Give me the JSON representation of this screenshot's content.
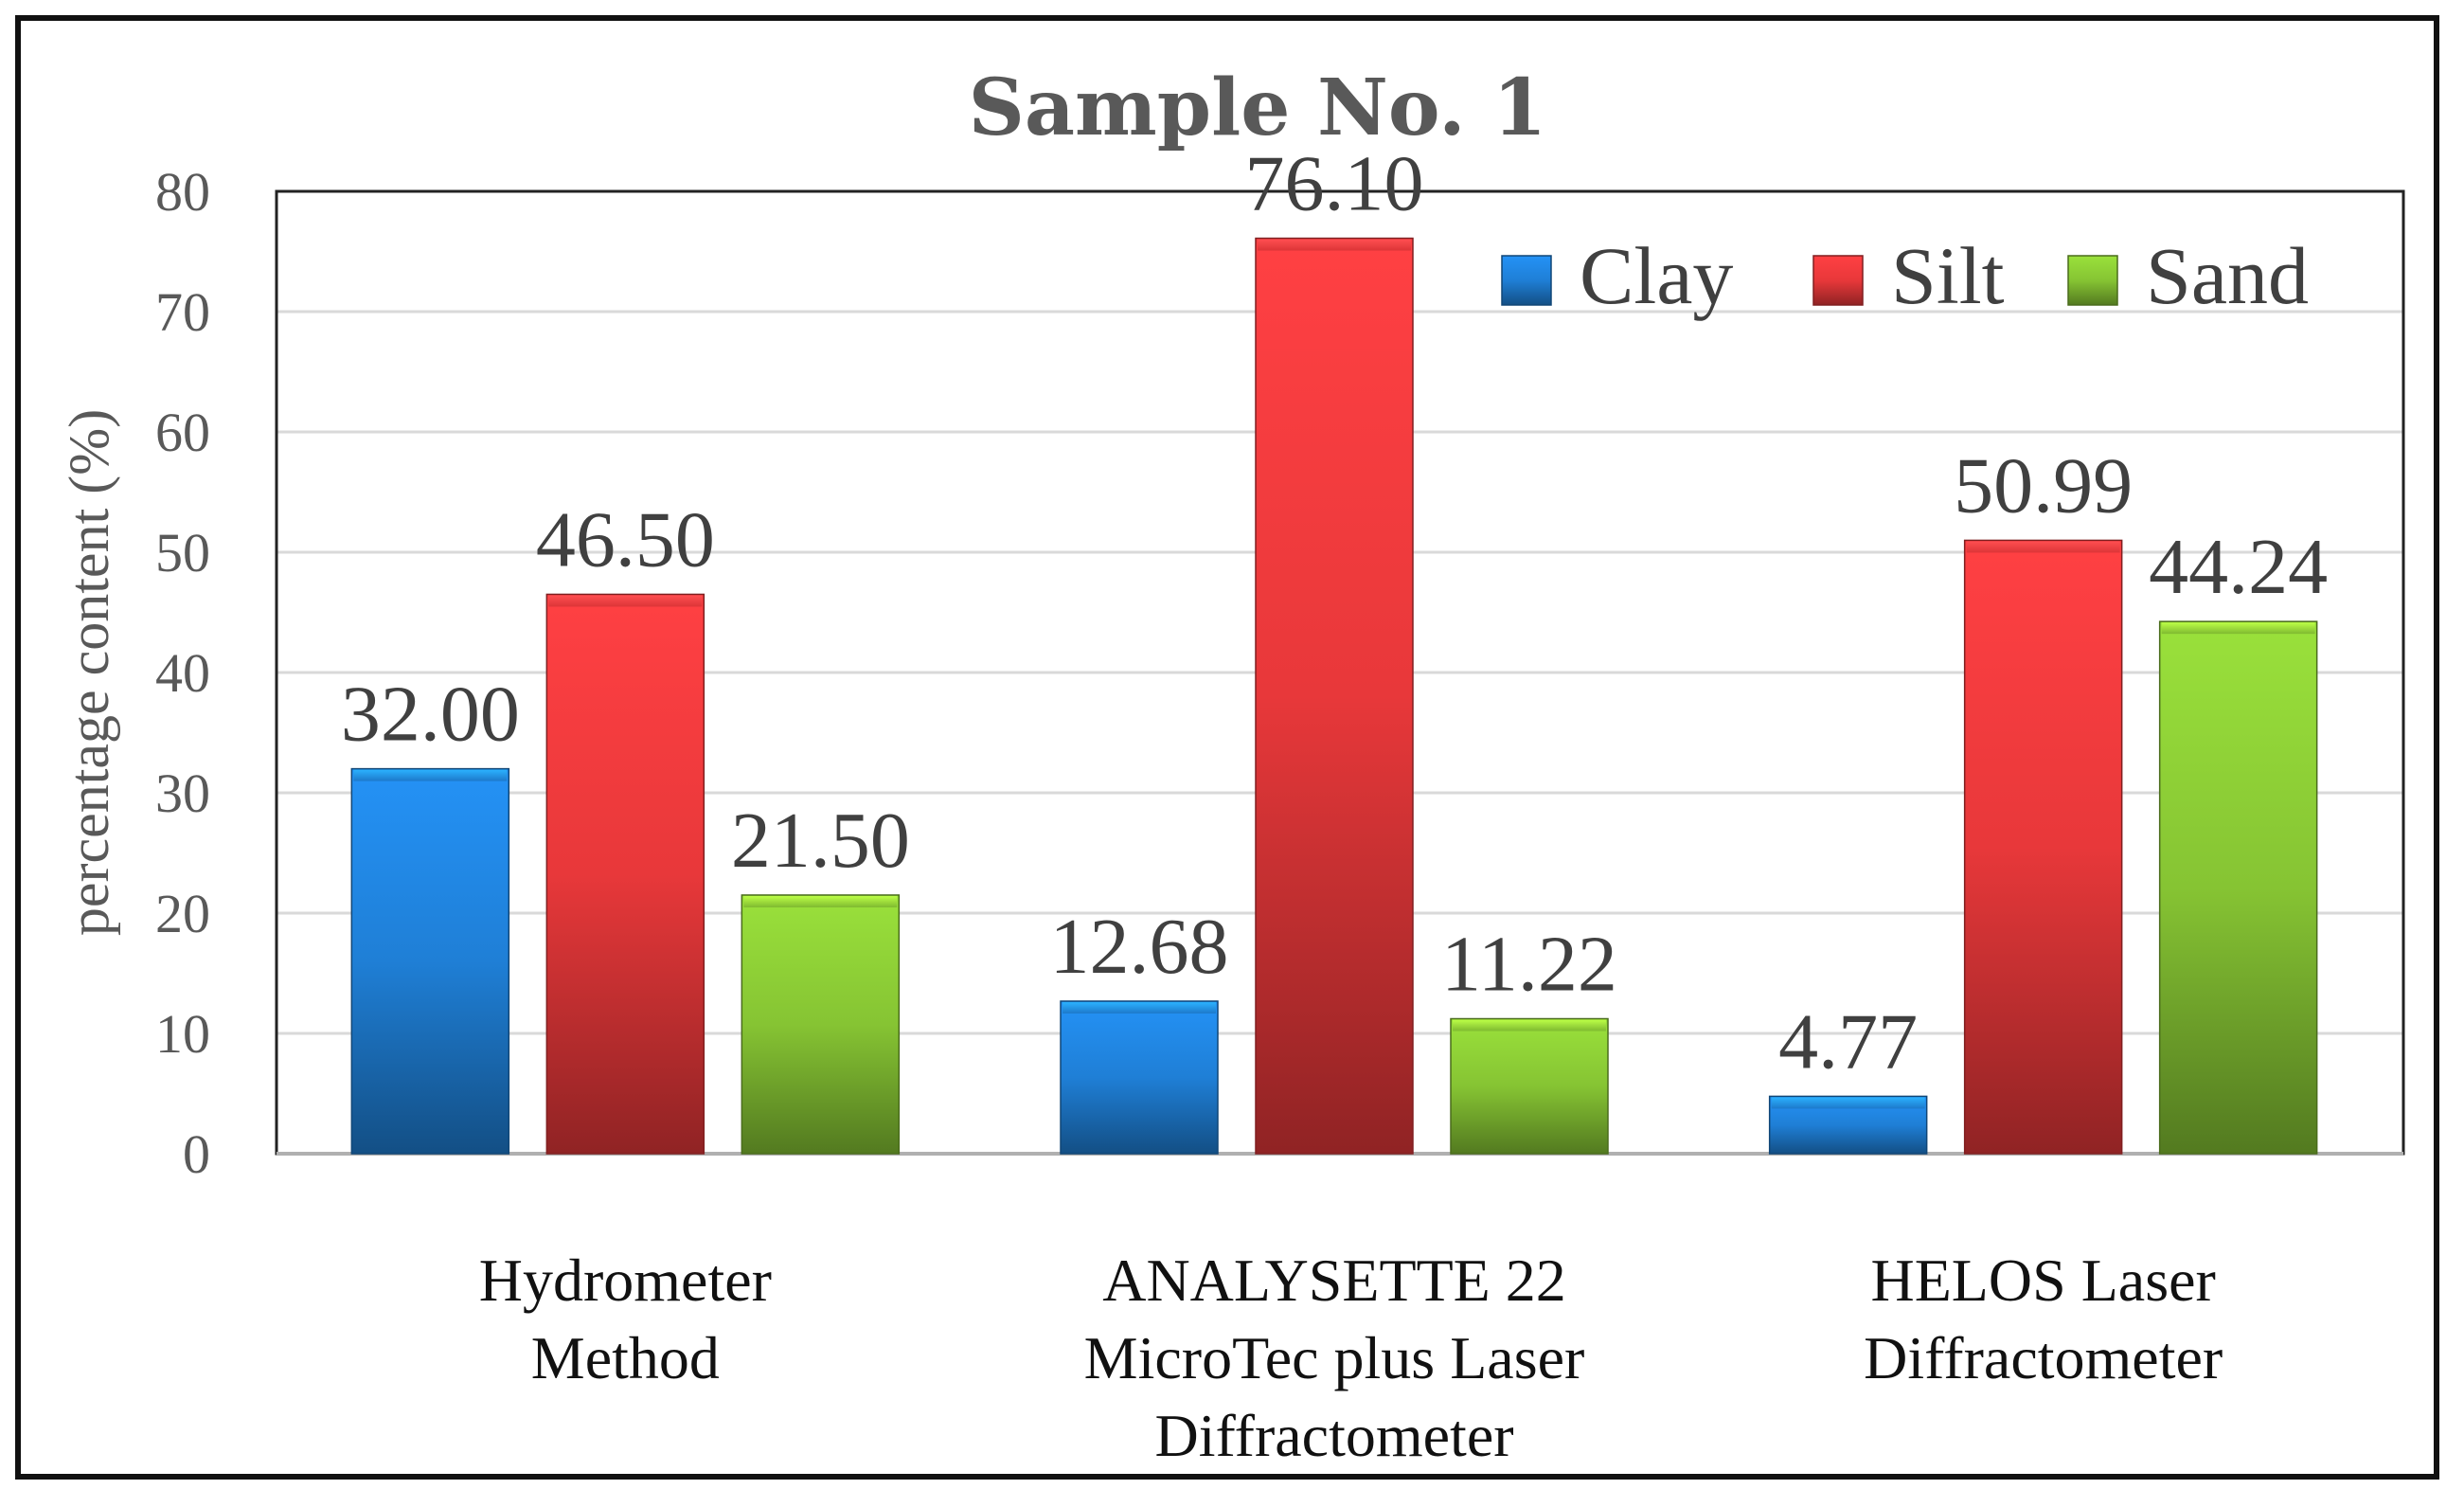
{
  "chart_data": {
    "type": "bar",
    "title": "Sample No. 1",
    "xlabel": "",
    "ylabel": "percentage content (%)",
    "ylim": [
      0,
      80
    ],
    "yticks": [
      0,
      10,
      20,
      30,
      40,
      50,
      60,
      70,
      80
    ],
    "grid": true,
    "legend_position": "top-right",
    "categories": [
      [
        "Hydrometer",
        "Method"
      ],
      [
        "ANALYSETTE 22",
        "MicroTec plus Laser",
        "Diffractometer"
      ],
      [
        "HELOS Laser",
        "Diffractometer"
      ]
    ],
    "series": [
      {
        "name": "Clay",
        "color": "#1f7fd6",
        "values": [
          32.0,
          12.68,
          4.77
        ],
        "labels": [
          "32.00",
          "12.68",
          "4.77"
        ]
      },
      {
        "name": "Silt",
        "color": "#e8383a",
        "values": [
          46.5,
          76.1,
          50.99
        ],
        "labels": [
          "46.50",
          "76.10",
          "50.99"
        ]
      },
      {
        "name": "Sand",
        "color": "#86c433",
        "values": [
          21.5,
          11.22,
          44.24
        ],
        "labels": [
          "21.50",
          "11.22",
          "44.24"
        ]
      }
    ]
  }
}
